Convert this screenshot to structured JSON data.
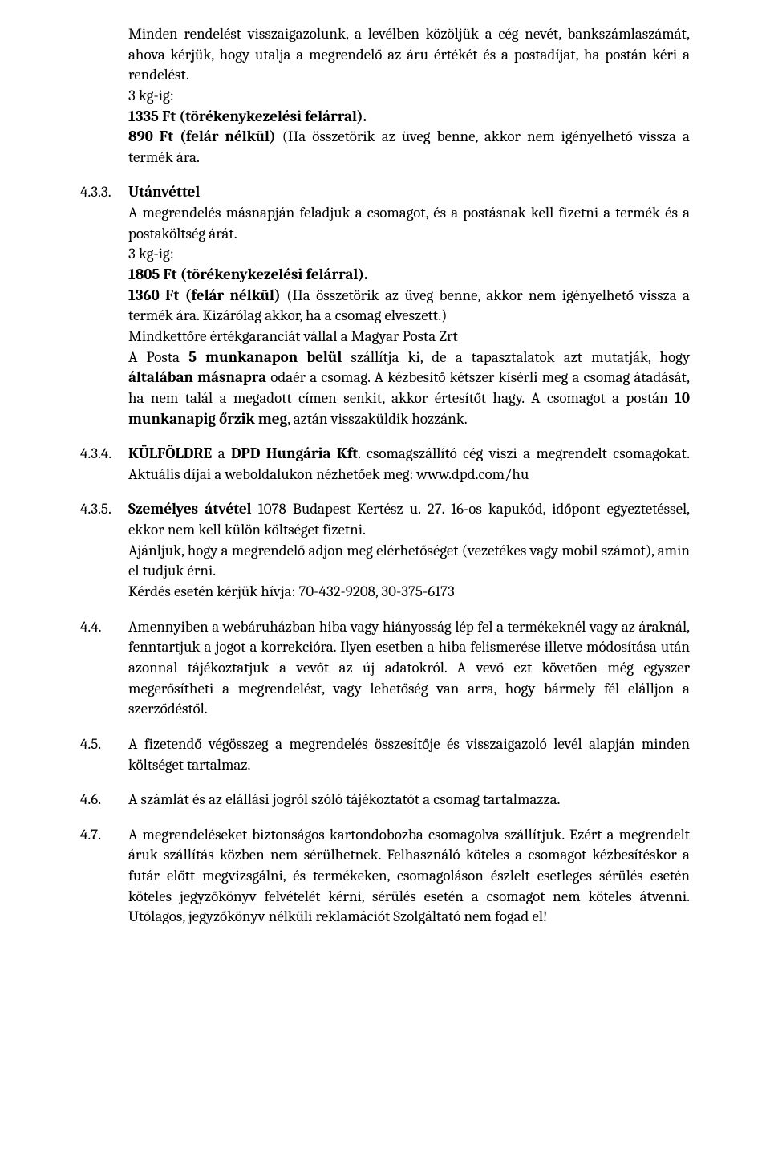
{
  "font": {
    "family": "Cambria, Georgia, serif",
    "size_pt": 14,
    "line_height": 1.35
  },
  "colors": {
    "text": "#000000",
    "background": "#ffffff"
  },
  "entries": [
    {
      "num": "",
      "type": "continuation",
      "parts": [
        {
          "t": "Minden rendelést visszaigazolunk, a levélben közöljük a cég nevét, bankszámlaszámát, ahova kérjük, hogy utalja a megrendelő az áru értékét és a postadíjat, ha postán kéri a rendelést."
        },
        {
          "t": "3 kg-ig:"
        },
        {
          "t": "1335 Ft (törékenykezelési felárral).",
          "bold_prefix": "1335 Ft (törékenykezelési felárral)."
        },
        {
          "t": "890 Ft (felár nélkül) (Ha összetörik az üveg benne,  akkor nem igényelhető vissza a termék ára.",
          "bold_prefix": "890 Ft (felár nélkül)"
        }
      ]
    },
    {
      "num": "4.3.3.",
      "parts": [
        {
          "bold_prefix": "Utánvéttel",
          "t": ""
        },
        {
          "t": "A megrendelés másnapján feladjuk a csomagot, és a postásnak kell fizetni a termék és a postaköltség árát."
        },
        {
          "t": "3 kg-ig:"
        },
        {
          "bold_prefix": "1805 Ft (törékenykezelési felárral).",
          "t": ""
        },
        {
          "bold_prefix": "1360 Ft (felár nélkül)",
          "t": " (Ha összetörik az üveg benne, akkor nem igényelhető vissza a termék ára. Kizárólag akkor, ha a csomag elveszett.)"
        },
        {
          "t": "Mindkettőre értékgaranciát vállal a Magyar Posta Zrt"
        },
        {
          "html": "A Posta <b>5 munkanapon belül</b> szállítja ki, de a tapasztalatok azt mutatják, hogy <b>általában másnapra</b> odaér a csomag. A kézbesítő kétszer kísérli meg a csomag átadását, ha nem talál a megadott címen senkit, akkor értesítőt hagy. A csomagot a postán <b>10 munkanapig őrzik meg</b>, aztán visszaküldik hozzánk."
        }
      ]
    },
    {
      "num": "4.3.4.",
      "parts": [
        {
          "html": "<b>KÜLFÖLDRE</b> a <b>DPD Hungária Kft</b>. csomagszállító cég viszi a megrendelt csomagokat. Aktuális díjai a weboldalukon nézhetőek meg: www.dpd.com/hu"
        }
      ]
    },
    {
      "num": "4.3.5.",
      "parts": [
        {
          "html": "<b>Személyes átvétel</b> 1078 Budapest Kertész u. 27. 16-os kapukód, időpont egyeztetéssel, ekkor nem kell külön  költséget  fizetni."
        },
        {
          "t": "Ajánljuk, hogy a megrendelő adjon meg elérhetőséget (vezetékes vagy mobil számot), amin el tudjuk érni."
        },
        {
          "t": "Kérdés esetén kérjük hívja: 70-432-9208, 30-375-6173"
        }
      ]
    },
    {
      "num": "4.4.",
      "parts": [
        {
          "t": "Amennyiben a webáruházban hiba vagy hiányosság lép fel a termékeknél vagy az áraknál, fenntartjuk a jogot a korrekcióra. Ilyen esetben a hiba felismerése illetve módosítása után azonnal tájékoztatjuk a vevőt az új adatokról. A vevő ezt követően még egyszer megerősítheti a megrendelést, vagy lehetőség van arra, hogy bármely fél elálljon a szerződéstől."
        }
      ]
    },
    {
      "num": "4.5.",
      "parts": [
        {
          "t": "A fizetendő végösszeg a megrendelés összesítője és visszaigazoló levél alapján minden költséget tartalmaz."
        }
      ]
    },
    {
      "num": "4.6.",
      "parts": [
        {
          "t": "A számlát és az elállási jogról szóló tájékoztatót a csomag tartalmazza."
        }
      ]
    },
    {
      "num": "4.7.",
      "parts": [
        {
          "t": "A megrendeléseket biztonságos kartondobozba csomagolva szállítjuk. Ezért a megrendelt áruk szállítás közben nem sérülhetnek. Felhasználó köteles a csomagot kézbesítéskor a futár előtt megvizsgálni, és termékeken, csomagoláson észlelt esetleges sérülés esetén köteles jegyzőkönyv felvételét kérni, sérülés esetén a csomagot nem köteles átvenni. Utólagos, jegyzőkönyv nélküli reklamációt Szolgáltató nem fogad el!"
        }
      ]
    }
  ]
}
